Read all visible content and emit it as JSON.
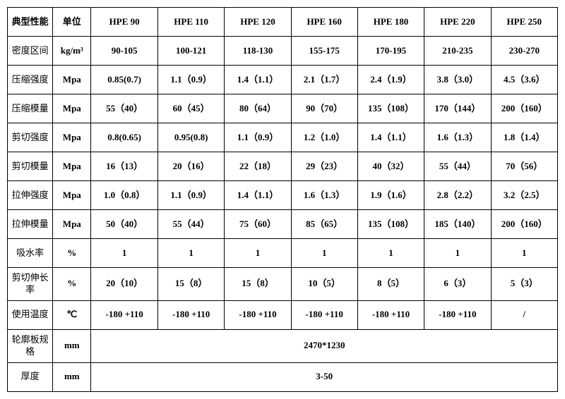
{
  "table": {
    "header": {
      "propLabel": "典型性能",
      "unitLabel": "单位",
      "models": [
        "HPE 90",
        "HPE 110",
        "HPE 120",
        "HPE 160",
        "HPE 180",
        "HPE 220",
        "HPE 250"
      ]
    },
    "rows": [
      {
        "label": "密度区间",
        "unit": "kg/m³",
        "cells": [
          "90-105",
          "100-121",
          "118-130",
          "155-175",
          "170-195",
          "210-235",
          "230-270"
        ]
      },
      {
        "label": "压缩强度",
        "unit": "Mpa",
        "cells": [
          "0.85(0.7)",
          "1.1（0.9）",
          "1.4（1.1）",
          "2.1（1.7）",
          "2.4（1.9）",
          "3.8（3.0）",
          "4.5（3.6）"
        ]
      },
      {
        "label": "压缩模量",
        "unit": "Mpa",
        "cells": [
          "55（40）",
          "60（45）",
          "80（64）",
          "90（70）",
          "135（108）",
          "170（144）",
          "200（160）"
        ]
      },
      {
        "label": "剪切强度",
        "unit": "Mpa",
        "cells": [
          "0.8(0.65)",
          "0.95(0.8)",
          "1.1（0.9）",
          "1.2（1.0）",
          "1.4（1.1）",
          "1.6（1.3）",
          "1.8（1.4）"
        ]
      },
      {
        "label": "剪切模量",
        "unit": "Mpa",
        "cells": [
          "16（13）",
          "20（16）",
          "22（18）",
          "29（23）",
          "40（32）",
          "55（44）",
          "70（56）"
        ]
      },
      {
        "label": "拉伸强度",
        "unit": "Mpa",
        "cells": [
          "1.0（0.8）",
          "1.1（0.9）",
          "1.4（1.1）",
          "1.6（1.3）",
          "1.9（1.6）",
          "2.8（2.2）",
          "3.2（2.5）"
        ]
      },
      {
        "label": "拉伸模量",
        "unit": "Mpa",
        "cells": [
          "50（40）",
          "55（44）",
          "75（60）",
          "85（65）",
          "135（108）",
          "185（140）",
          "200（160）"
        ]
      },
      {
        "label": "吸水率",
        "unit": "%",
        "cells": [
          "1",
          "1",
          "1",
          "1",
          "1",
          "1",
          "1"
        ]
      },
      {
        "label": "剪切伸长率",
        "unit": "%",
        "cells": [
          "20（10）",
          "15（8）",
          "15（8）",
          "10（5）",
          "8（5）",
          "6（3）",
          "5（3）"
        ]
      },
      {
        "label": "使用温度",
        "unit": "℃",
        "cells": [
          "-180 +110",
          "-180 +110",
          "-180 +110",
          "-180 +110",
          "-180 +110",
          "-180 +110",
          "/"
        ]
      }
    ],
    "spanRows": [
      {
        "label": "轮廓板规格",
        "unit": "mm",
        "value": "2470*1230"
      },
      {
        "label": "厚度",
        "unit": "mm",
        "value": "3-50"
      }
    ],
    "style": {
      "borderColor": "#000000",
      "background": "#ffffff",
      "fontFamily": "SimSun",
      "baseFontSize": 13,
      "headerFontWeight": "bold",
      "cellFontWeight": "bold",
      "widthPx": 780
    }
  }
}
